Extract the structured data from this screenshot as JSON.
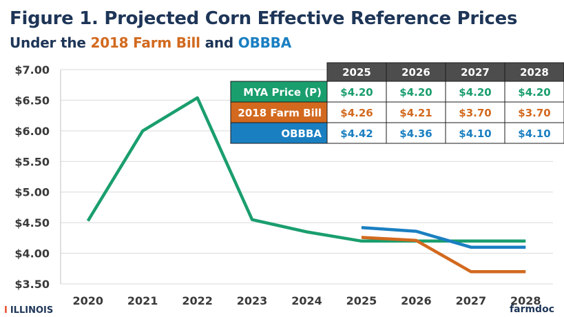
{
  "header": {
    "title": "Figure 1. Projected Corn Effective Reference Prices",
    "subtitle_prefix": "Under the ",
    "subtitle_farm_bill": "2018 Farm Bill",
    "subtitle_and": " and ",
    "subtitle_obbba": "OBBBA"
  },
  "chart_data": {
    "type": "line",
    "x": [
      "2020",
      "2021",
      "2022",
      "2023",
      "2024",
      "2025",
      "2026",
      "2027",
      "2028"
    ],
    "y_ticks": [
      "$3.50",
      "$4.00",
      "$4.50",
      "$5.00",
      "$5.50",
      "$6.00",
      "$6.50",
      "$7.00"
    ],
    "ylim": [
      3.5,
      7.0
    ],
    "grid": true,
    "series": [
      {
        "name": "MYA Price (P)",
        "color": "#1a9e6e",
        "x": [
          "2020",
          "2021",
          "2022",
          "2023",
          "2024",
          "2025",
          "2026",
          "2027",
          "2028"
        ],
        "values": [
          4.53,
          6.0,
          6.54,
          4.55,
          4.35,
          4.2,
          4.2,
          4.2,
          4.2
        ]
      },
      {
        "name": "2018 Farm Bill",
        "color": "#d2691e",
        "x": [
          "2025",
          "2026",
          "2027",
          "2028"
        ],
        "values": [
          4.26,
          4.21,
          3.7,
          3.7
        ]
      },
      {
        "name": "OBBBA",
        "color": "#1a7fc1",
        "x": [
          "2025",
          "2026",
          "2027",
          "2028"
        ],
        "values": [
          4.42,
          4.36,
          4.1,
          4.1
        ]
      }
    ],
    "table": {
      "columns": [
        "2025",
        "2026",
        "2027",
        "2028"
      ],
      "rows": [
        {
          "label": "MYA Price (P)",
          "color": "#1a9e6e",
          "cells": [
            "$4.20",
            "$4.20",
            "$4.20",
            "$4.20"
          ]
        },
        {
          "label": "2018 Farm Bill",
          "color": "#d2691e",
          "cells": [
            "$4.26",
            "$4.21",
            "$3.70",
            "$3.70"
          ]
        },
        {
          "label": "OBBBA",
          "color": "#1a7fc1",
          "cells": [
            "$4.42",
            "$4.36",
            "$4.10",
            "$4.10"
          ]
        }
      ]
    }
  },
  "footer": {
    "left_mark": "I",
    "left_text": "ILLINOIS",
    "right_text": "farmdoc"
  }
}
